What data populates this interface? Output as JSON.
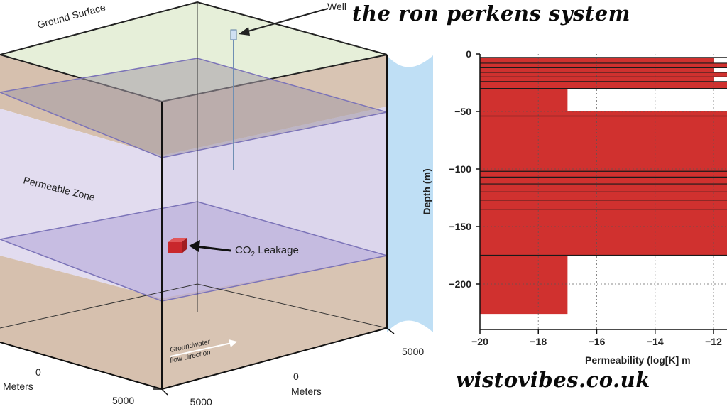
{
  "watermark": {
    "title": "the ron perkens system",
    "site": "wistovibes.co.uk"
  },
  "diagram": {
    "ground_surface": "Ground Surface",
    "well": "Well",
    "permeable_zone": "Permeable Zone",
    "leak_text": "CO",
    "leak_sub": "2",
    "leak_suffix": " Leakage",
    "flow_line1": "Groundwater",
    "flow_line2": "flow direction",
    "axis_a_zero": "0",
    "axis_a_unit": "Meters",
    "axis_a_end": "5000",
    "axis_b_zero": "0",
    "axis_b_unit": "Meters",
    "axis_b_right": "5000",
    "axis_b_left": "– 5000",
    "colors": {
      "ground_top": "#e6efd9",
      "soil": "#d8c4b3",
      "permeable": "#dcd6ec",
      "layer_plane": "#b6a9d9",
      "leak": "#c9272c",
      "connector": "#bfdff5"
    }
  },
  "chart_data": {
    "type": "bar",
    "orientation": "horizontal",
    "xlabel": "Permeability (log[K] m",
    "ylabel": "Depth (m)",
    "xlim": [
      -20,
      -12
    ],
    "ylim": [
      -226,
      0
    ],
    "xticks": [
      "−20",
      "−18",
      "−16",
      "−14",
      "−12"
    ],
    "yticks": [
      "0",
      "−50",
      "−100",
      "−150",
      "−200"
    ],
    "xtick_values": [
      -20,
      -18,
      -16,
      -14,
      -12
    ],
    "ytick_values": [
      0,
      -50,
      -100,
      -150,
      -200
    ],
    "grid": true,
    "color": "#d0312f",
    "layers": [
      {
        "top": -3,
        "bottom": -8,
        "value": -12
      },
      {
        "top": -8,
        "bottom": -12,
        "value": -11.5
      },
      {
        "top": -12,
        "bottom": -16,
        "value": -12
      },
      {
        "top": -16,
        "bottom": -20,
        "value": -11.5
      },
      {
        "top": -20,
        "bottom": -24,
        "value": -12
      },
      {
        "top": -24,
        "bottom": -30,
        "value": -11.5
      },
      {
        "top": -30,
        "bottom": -50,
        "value": -17
      },
      {
        "top": -50,
        "bottom": -54,
        "value": -11.5
      },
      {
        "top": -54,
        "bottom": -175,
        "value": -11.5
      },
      {
        "top": -175,
        "bottom": -226,
        "value": -17
      }
    ],
    "boundaries": [
      -3,
      -8,
      -12,
      -16,
      -20,
      -24,
      -30,
      -54,
      -102,
      -107,
      -113,
      -120,
      -127,
      -135,
      -175
    ]
  }
}
